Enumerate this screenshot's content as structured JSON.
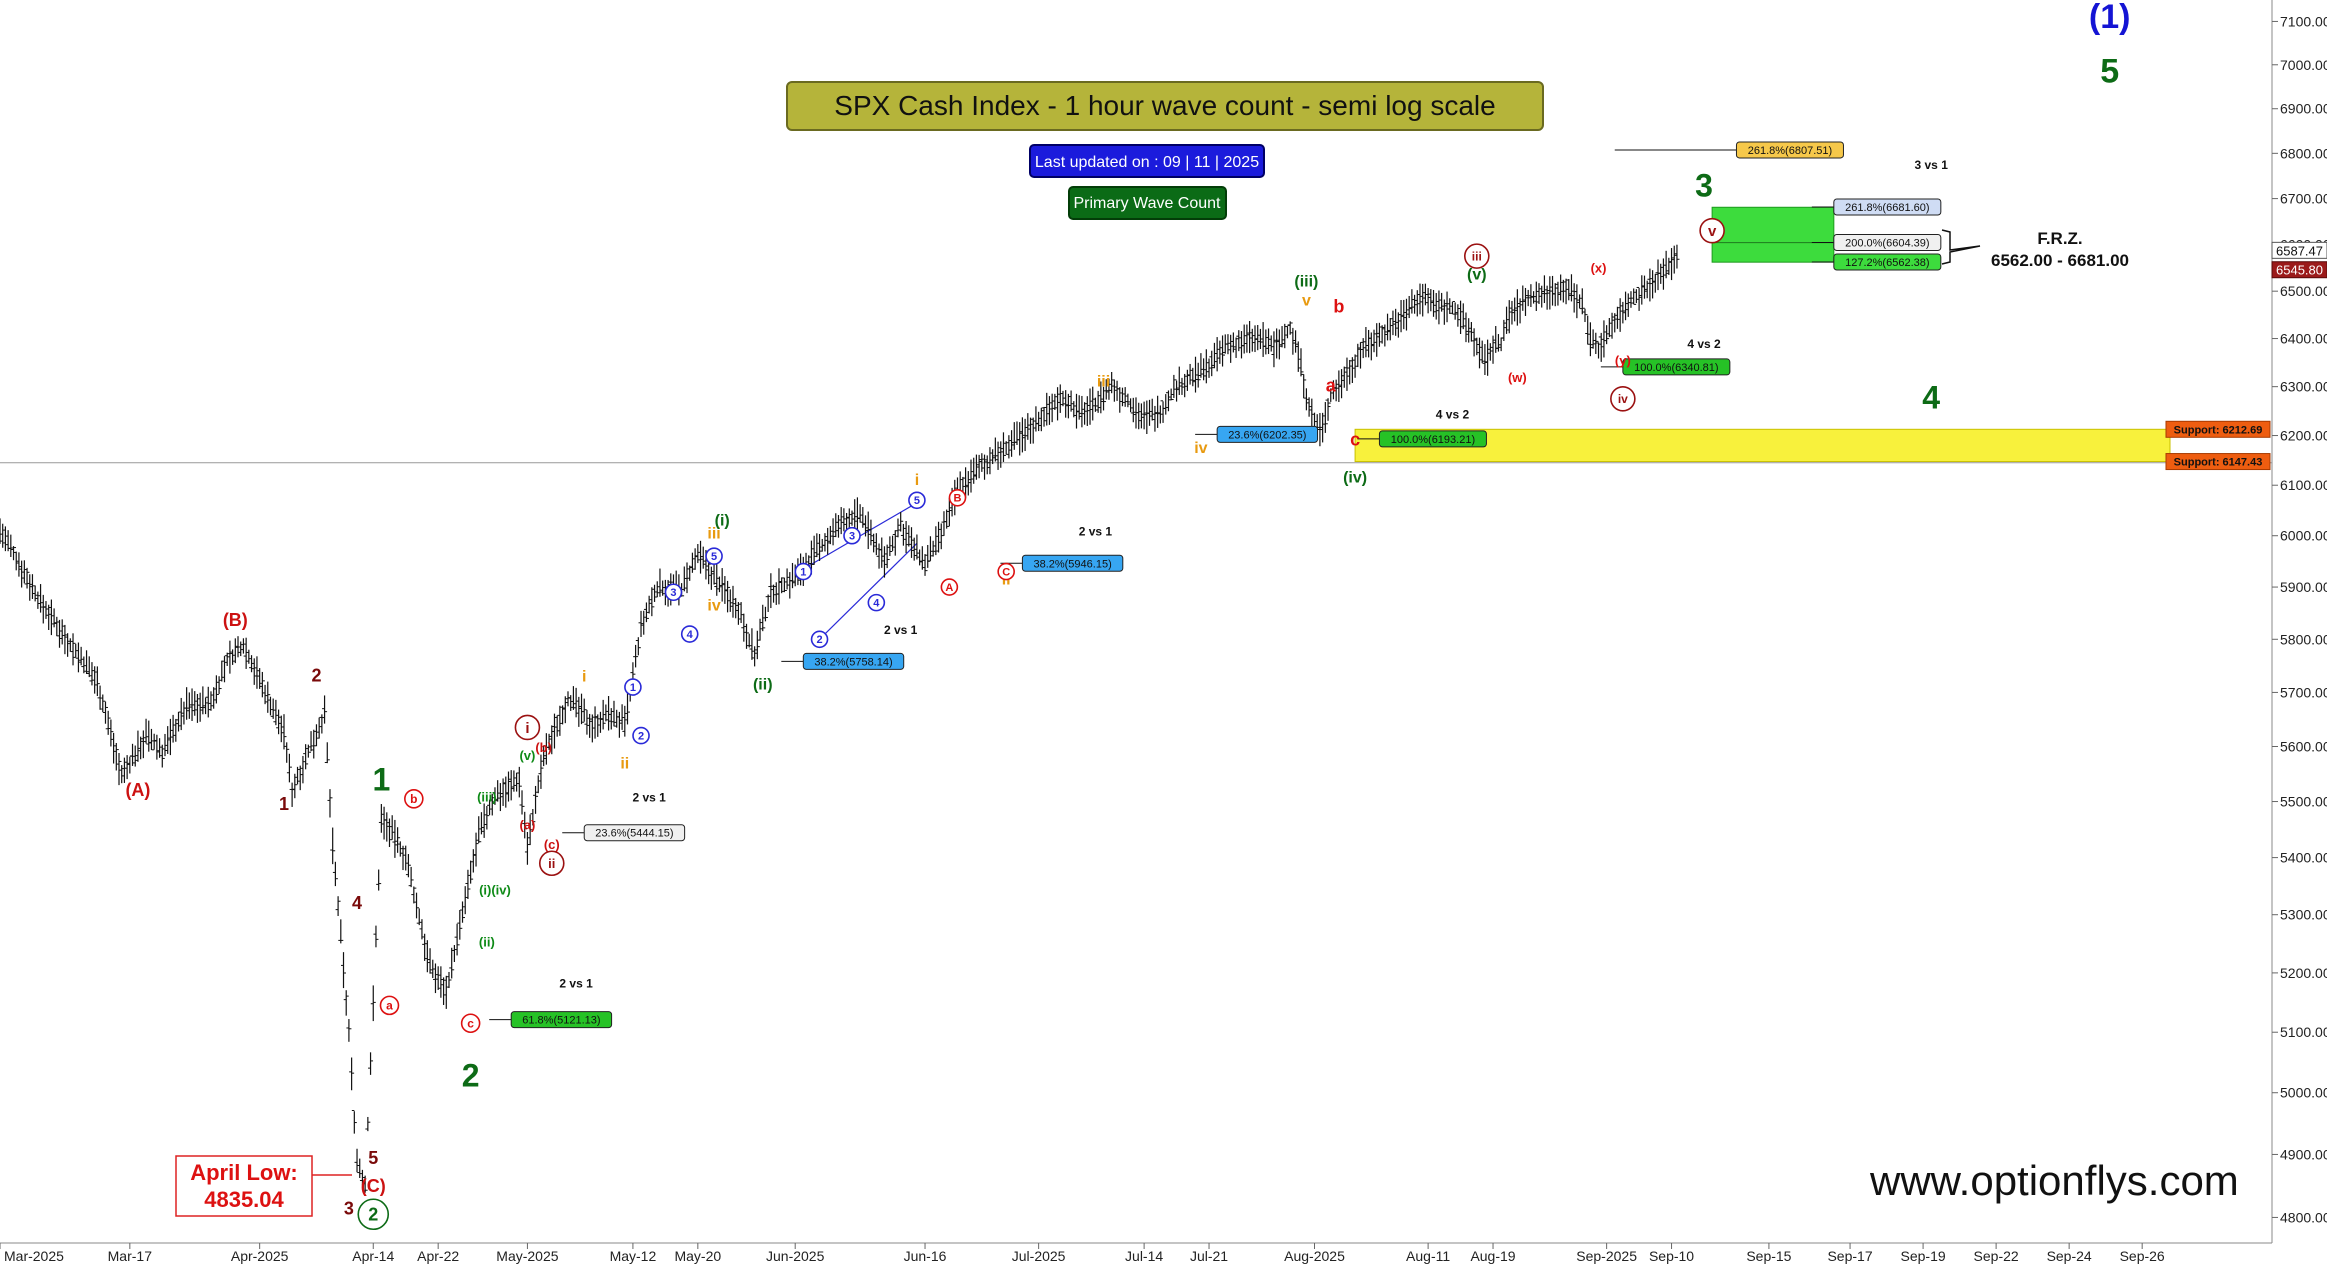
{
  "title": "SPX Cash Index - 1 hour wave count - semi log scale",
  "updated": "Last updated on : 09 | 11 | 2025",
  "count_label": "Primary Wave Count",
  "watermark": "www.optionflys.com",
  "colors": {
    "title_bg": "#b5b43a",
    "updated_bg": "#1b1bdc",
    "count_bg": "#0b6b16",
    "frz": "#3ddc3d",
    "support_zone": "#f8f13c",
    "support_tag": "#ee5d10"
  },
  "chart_data": {
    "type": "bar",
    "scale": "log",
    "ylim": [
      4760,
      7150
    ],
    "y_ticks": [
      4800,
      4900,
      5000,
      5100,
      5200,
      5300,
      5400,
      5500,
      5600,
      5700,
      5800,
      5900,
      6000,
      6100,
      6200,
      6300,
      6400,
      6500,
      6600,
      6700,
      6800,
      6900,
      7000,
      7100
    ],
    "y_tick_labels": [
      "4800.00",
      "4900.00",
      "5000.00",
      "5100.00",
      "5200.00",
      "5300.00",
      "5400.00",
      "5500.00",
      "5600.00",
      "5700.00",
      "5800.00",
      "5900.00",
      "6000.00",
      "6100.00",
      "6200.00",
      "6300.00",
      "6400.00",
      "6500.00",
      "6600.00",
      "6700.00",
      "6800.00",
      "6900.00",
      "7000.00",
      "7100.00"
    ],
    "x_tick_labels": [
      "Mar-2025",
      "Mar-17",
      "Apr-2025",
      "Apr-14",
      "Apr-22",
      "May-2025",
      "May-12",
      "May-20",
      "Jun-2025",
      "Jun-16",
      "Jul-2025",
      "Jul-14",
      "Jul-21",
      "Aug-2025",
      "Aug-11",
      "Aug-19",
      "Sep-2025",
      "Sep-10",
      "Sep-15",
      "Sep-17",
      "Sep-19",
      "Sep-22",
      "Sep-24",
      "Sep-26"
    ],
    "x_tick_pos": [
      0,
      16,
      32,
      46,
      54,
      65,
      78,
      86,
      98,
      114,
      128,
      141,
      149,
      162,
      176,
      184,
      198,
      206,
      218,
      228,
      237,
      246,
      255,
      264
    ],
    "x_count": 280,
    "last_index": 207,
    "series_path": [
      [
        0,
        6010
      ],
      [
        2,
        5955
      ],
      [
        5,
        5870
      ],
      [
        8,
        5805
      ],
      [
        12,
        5720
      ],
      [
        15,
        5545
      ],
      [
        18,
        5620
      ],
      [
        20,
        5590
      ],
      [
        23,
        5675
      ],
      [
        26,
        5680
      ],
      [
        28,
        5760
      ],
      [
        30,
        5790
      ],
      [
        33,
        5690
      ],
      [
        35,
        5625
      ],
      [
        36,
        5520
      ],
      [
        38,
        5590
      ],
      [
        40,
        5660
      ],
      [
        41,
        5420
      ],
      [
        43,
        5100
      ],
      [
        44,
        4890
      ],
      [
        45,
        4850
      ],
      [
        46,
        5150
      ],
      [
        47,
        5470
      ],
      [
        48,
        5450
      ],
      [
        50,
        5400
      ],
      [
        53,
        5210
      ],
      [
        55,
        5170
      ],
      [
        57,
        5300
      ],
      [
        59,
        5440
      ],
      [
        61,
        5510
      ],
      [
        64,
        5540
      ],
      [
        65,
        5420
      ],
      [
        67,
        5580
      ],
      [
        70,
        5690
      ],
      [
        73,
        5640
      ],
      [
        75,
        5660
      ],
      [
        77,
        5640
      ],
      [
        79,
        5820
      ],
      [
        81,
        5900
      ],
      [
        84,
        5895
      ],
      [
        86,
        5960
      ],
      [
        88,
        5920
      ],
      [
        91,
        5860
      ],
      [
        93,
        5770
      ],
      [
        95,
        5890
      ],
      [
        98,
        5920
      ],
      [
        101,
        5975
      ],
      [
        104,
        6030
      ],
      [
        106,
        6040
      ],
      [
        109,
        5950
      ],
      [
        111,
        6020
      ],
      [
        113,
        5965
      ],
      [
        114,
        5945
      ],
      [
        116,
        6000
      ],
      [
        118,
        6090
      ],
      [
        121,
        6140
      ],
      [
        124,
        6175
      ],
      [
        127,
        6215
      ],
      [
        129,
        6250
      ],
      [
        131,
        6280
      ],
      [
        133,
        6245
      ],
      [
        135,
        6265
      ],
      [
        137,
        6300
      ],
      [
        139,
        6270
      ],
      [
        141,
        6235
      ],
      [
        143,
        6250
      ],
      [
        145,
        6300
      ],
      [
        148,
        6330
      ],
      [
        151,
        6380
      ],
      [
        154,
        6400
      ],
      [
        156,
        6395
      ],
      [
        157,
        6380
      ],
      [
        159,
        6420
      ],
      [
        160,
        6370
      ],
      [
        161,
        6285
      ],
      [
        162,
        6220
      ],
      [
        163,
        6215
      ],
      [
        164,
        6280
      ],
      [
        166,
        6330
      ],
      [
        168,
        6380
      ],
      [
        171,
        6420
      ],
      [
        173,
        6450
      ],
      [
        175,
        6490
      ],
      [
        177,
        6470
      ],
      [
        179,
        6465
      ],
      [
        181,
        6420
      ],
      [
        183,
        6350
      ],
      [
        184,
        6385
      ],
      [
        185,
        6390
      ],
      [
        186,
        6450
      ],
      [
        188,
        6480
      ],
      [
        191,
        6500
      ],
      [
        193,
        6510
      ],
      [
        195,
        6470
      ],
      [
        196,
        6400
      ],
      [
        197,
        6380
      ],
      [
        199,
        6440
      ],
      [
        201,
        6480
      ],
      [
        203,
        6510
      ],
      [
        205,
        6540
      ],
      [
        207,
        6590
      ]
    ],
    "last_price": "6587.47",
    "last_price_2": "6545.80",
    "hline": 6145,
    "frz": {
      "title": "F.R.Z.",
      "range": "6562.00 - 6681.00",
      "low": 6562,
      "high": 6681
    },
    "levels": [
      {
        "text": "261.8%(6807.51)",
        "value": 6807.51,
        "x": 214,
        "color": "#f6c84a"
      },
      {
        "text": "261.8%(6681.60)",
        "value": 6681.6,
        "x": 226,
        "color": "#cfdcf4"
      },
      {
        "text": "200.0%(6604.39)",
        "value": 6604.39,
        "x": 226,
        "color": "#f0f0f0"
      },
      {
        "text": "127.2%(6562.38)",
        "value": 6562.38,
        "x": 226,
        "color": "#3ddc3d"
      },
      {
        "text": "100.0%(6340.81)",
        "value": 6340.81,
        "x": 200,
        "color": "#26c226"
      },
      {
        "text": "100.0%(6193.21)",
        "value": 6193.21,
        "x": 170,
        "color": "#26c226"
      },
      {
        "text": "23.6%(6202.35)",
        "value": 6202.35,
        "x": 150,
        "color": "#37a6f2"
      },
      {
        "text": "38.2%(5946.15)",
        "value": 5946.15,
        "x": 126,
        "color": "#37a6f2"
      },
      {
        "text": "38.2%(5758.14)",
        "value": 5758.14,
        "x": 99,
        "color": "#37a6f2"
      },
      {
        "text": "23.6%(5444.15)",
        "value": 5444.15,
        "x": 72,
        "color": "#f0f0f0"
      },
      {
        "text": "61.8%(5121.13)",
        "value": 5121.13,
        "x": 63,
        "color": "#26c226"
      }
    ],
    "support": [
      {
        "text": "Support: 6212.69",
        "value": 6212.69
      },
      {
        "text": "Support: 6147.43",
        "value": 6147.43
      }
    ],
    "notes": [
      {
        "text": "3 vs 1",
        "x": 238,
        "value": 6765
      },
      {
        "text": "4 vs 2",
        "x": 210,
        "value": 6380
      },
      {
        "text": "4 vs 2",
        "x": 179,
        "value": 6235
      },
      {
        "text": "2 vs 1",
        "x": 135,
        "value": 6000
      },
      {
        "text": "2 vs 1",
        "x": 111,
        "value": 5810
      },
      {
        "text": "2 vs 1",
        "x": 80,
        "value": 5500
      },
      {
        "text": "2 vs 1",
        "x": 71,
        "value": 5175
      }
    ],
    "wave_labels": [
      {
        "t": "(1)",
        "x": 260,
        "v": 7085,
        "c": "#1414d4",
        "s": 34
      },
      {
        "t": "5",
        "x": 260,
        "v": 6960,
        "c": "#0d6b16",
        "s": 34
      },
      {
        "t": "3",
        "x": 210,
        "v": 6705,
        "c": "#0d6b16",
        "s": 32
      },
      {
        "t": "4",
        "x": 238,
        "v": 6255,
        "c": "#0d6b16",
        "s": 32
      },
      {
        "t": "1",
        "x": 47,
        "v": 5520,
        "c": "#0d6b16",
        "s": 32
      },
      {
        "t": "2",
        "x": 58,
        "v": 5010,
        "c": "#0d6b16",
        "s": 32
      },
      {
        "t": "(A)",
        "x": 17,
        "v": 5510,
        "c": "#cc1111",
        "s": 18
      },
      {
        "t": "(B)",
        "x": 29,
        "v": 5825,
        "c": "#cc1111",
        "s": 18
      },
      {
        "t": "2",
        "x": 39,
        "v": 5720,
        "c": "#7a0a0a",
        "s": 18
      },
      {
        "t": "1",
        "x": 35,
        "v": 5485,
        "c": "#7a0a0a",
        "s": 18
      },
      {
        "t": "4",
        "x": 44,
        "v": 5310,
        "c": "#7a0a0a",
        "s": 18
      },
      {
        "t": "5",
        "x": 46,
        "v": 4885,
        "c": "#7a0a0a",
        "s": 18
      },
      {
        "t": "3",
        "x": 43,
        "v": 4805,
        "c": "#7a0a0a",
        "s": 18
      },
      {
        "t": "(C)",
        "x": 46,
        "v": 4840,
        "c": "#cc1111",
        "s": 18
      },
      {
        "t": "(i)(iv)",
        "x": 61,
        "v": 5335,
        "c": "#0d8a16",
        "s": 13
      },
      {
        "t": "(iii)",
        "x": 60,
        "v": 5500,
        "c": "#0d8a16",
        "s": 13
      },
      {
        "t": "(ii)",
        "x": 60,
        "v": 5245,
        "c": "#0d8a16",
        "s": 13
      },
      {
        "t": "(v)",
        "x": 65,
        "v": 5575,
        "c": "#0d8a16",
        "s": 13
      },
      {
        "t": "(b)",
        "x": 67,
        "v": 5590,
        "c": "#cc1111",
        "s": 13
      },
      {
        "t": "(a)",
        "x": 65,
        "v": 5450,
        "c": "#cc1111",
        "s": 13
      },
      {
        "t": "(c)",
        "x": 68,
        "v": 5415,
        "c": "#cc1111",
        "s": 13
      },
      {
        "t": "i",
        "x": 72,
        "v": 5720,
        "c": "#e89a10",
        "s": 16
      },
      {
        "t": "ii",
        "x": 77,
        "v": 5560,
        "c": "#e89a10",
        "s": 16
      },
      {
        "t": "iii",
        "x": 88,
        "v": 5995,
        "c": "#e89a10",
        "s": 16
      },
      {
        "t": "iv",
        "x": 88,
        "v": 5855,
        "c": "#e89a10",
        "s": 16
      },
      {
        "t": "(i)",
        "x": 89,
        "v": 6020,
        "c": "#0d6b16",
        "s": 16
      },
      {
        "t": "(ii)",
        "x": 94,
        "v": 5705,
        "c": "#0d6b16",
        "s": 16
      },
      {
        "t": "i",
        "x": 113,
        "v": 6100,
        "c": "#e89a10",
        "s": 16
      },
      {
        "t": "ii",
        "x": 124,
        "v": 5905,
        "c": "#e89a10",
        "s": 16
      },
      {
        "t": "iii",
        "x": 136,
        "v": 6300,
        "c": "#e89a10",
        "s": 16
      },
      {
        "t": "iv",
        "x": 148,
        "v": 6165,
        "c": "#e89a10",
        "s": 16
      },
      {
        "t": "v",
        "x": 161,
        "v": 6470,
        "c": "#e89a10",
        "s": 16
      },
      {
        "t": "(iii)",
        "x": 161,
        "v": 6510,
        "c": "#0d6b16",
        "s": 16
      },
      {
        "t": "(iv)",
        "x": 167,
        "v": 6105,
        "c": "#0d6b16",
        "s": 16
      },
      {
        "t": "(v)",
        "x": 182,
        "v": 6525,
        "c": "#0d6b16",
        "s": 16
      },
      {
        "t": "a",
        "x": 164,
        "v": 6290,
        "c": "#dd1111",
        "s": 18
      },
      {
        "t": "b",
        "x": 165,
        "v": 6455,
        "c": "#dd1111",
        "s": 18
      },
      {
        "t": "c",
        "x": 167,
        "v": 6180,
        "c": "#dd1111",
        "s": 18
      },
      {
        "t": "(x)",
        "x": 197,
        "v": 6540,
        "c": "#dd1111",
        "s": 13
      },
      {
        "t": "(w)",
        "x": 187,
        "v": 6310,
        "c": "#dd1111",
        "s": 13
      },
      {
        "t": "(y)",
        "x": 200,
        "v": 6345,
        "c": "#dd1111",
        "s": 13
      }
    ],
    "circle_labels": [
      {
        "t": "2",
        "x": 46,
        "v": 4805,
        "c": "#0d6b16",
        "r": 15,
        "s": 18
      },
      {
        "t": "i",
        "x": 65,
        "v": 5635,
        "c": "#9b1111",
        "r": 12,
        "s": 15
      },
      {
        "t": "ii",
        "x": 68,
        "v": 5390,
        "c": "#9b1111",
        "r": 12,
        "s": 13
      },
      {
        "t": "iii",
        "x": 182,
        "v": 6575,
        "c": "#9b1111",
        "r": 12,
        "s": 12
      },
      {
        "t": "iv",
        "x": 200,
        "v": 6275,
        "c": "#9b1111",
        "r": 12,
        "s": 12
      },
      {
        "t": "v",
        "x": 211,
        "v": 6630,
        "c": "#9b1111",
        "r": 12,
        "s": 15
      },
      {
        "t": "b",
        "x": 51,
        "v": 5505,
        "c": "#dd1111",
        "r": 9,
        "s": 12
      },
      {
        "t": "a",
        "x": 48,
        "v": 5145,
        "c": "#dd1111",
        "r": 9,
        "s": 12
      },
      {
        "t": "c",
        "x": 58,
        "v": 5115,
        "c": "#dd1111",
        "r": 9,
        "s": 12
      },
      {
        "t": "A",
        "x": 117,
        "v": 5900,
        "c": "#dd1111",
        "r": 8,
        "s": 11
      },
      {
        "t": "B",
        "x": 118,
        "v": 6075,
        "c": "#dd1111",
        "r": 8,
        "s": 11
      },
      {
        "t": "C",
        "x": 124,
        "v": 5930,
        "c": "#dd1111",
        "r": 8,
        "s": 11
      },
      {
        "t": "1",
        "x": 78,
        "v": 5710,
        "c": "#2a2ad8",
        "r": 8,
        "s": 11
      },
      {
        "t": "2",
        "x": 79,
        "v": 5620,
        "c": "#2a2ad8",
        "r": 8,
        "s": 11
      },
      {
        "t": "3",
        "x": 83,
        "v": 5890,
        "c": "#2a2ad8",
        "r": 8,
        "s": 11
      },
      {
        "t": "4",
        "x": 85,
        "v": 5810,
        "c": "#2a2ad8",
        "r": 8,
        "s": 11
      },
      {
        "t": "5",
        "x": 88,
        "v": 5960,
        "c": "#2a2ad8",
        "r": 8,
        "s": 11
      },
      {
        "t": "1",
        "x": 99,
        "v": 5930,
        "c": "#2a2ad8",
        "r": 8,
        "s": 11
      },
      {
        "t": "2",
        "x": 101,
        "v": 5800,
        "c": "#2a2ad8",
        "r": 8,
        "s": 11
      },
      {
        "t": "3",
        "x": 105,
        "v": 6000,
        "c": "#2a2ad8",
        "r": 8,
        "s": 11
      },
      {
        "t": "4",
        "x": 108,
        "v": 5870,
        "c": "#2a2ad8",
        "r": 8,
        "s": 11
      },
      {
        "t": "5",
        "x": 113,
        "v": 6070,
        "c": "#2a2ad8",
        "r": 8,
        "s": 11
      }
    ],
    "april_low": {
      "line1": "April Low:",
      "line2": "4835.04"
    }
  }
}
